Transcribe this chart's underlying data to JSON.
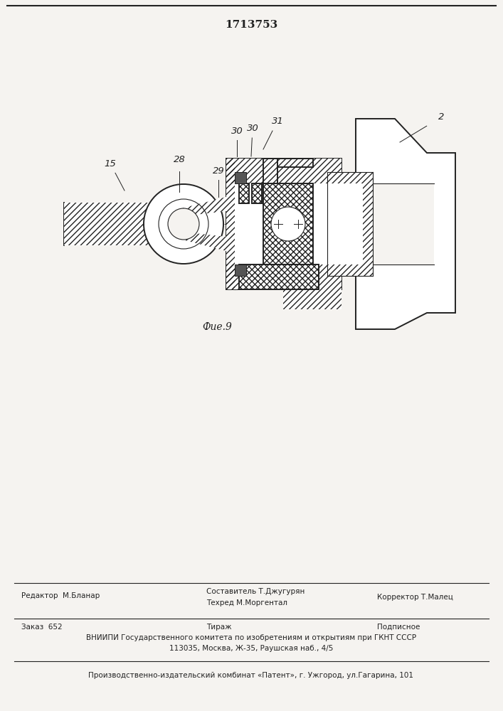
{
  "title": "1713753",
  "fig_label": "Фие.9",
  "footer": {
    "editor": "Редактор  М.Бланар",
    "composer": "Составитель Т.Джугурян",
    "corrector": "Корректор Т.Малец",
    "techred": "Техред М.Моргентал",
    "order": "Заказ  652",
    "tirazh": "Тираж",
    "podp": "Подписное",
    "vniip1": "ВНИИПИ Государственного комитета по изобретениям и открытиям при ГКНТ СССР",
    "vniip2": "113035, Москва, Ж-35, Раушская наб., 4/5",
    "plant": "Производственно-издательский комбинат «Патент», г. Ужгород, ул.Гагарина, 101"
  },
  "bg_color": "#f5f3f0",
  "line_color": "#222222"
}
